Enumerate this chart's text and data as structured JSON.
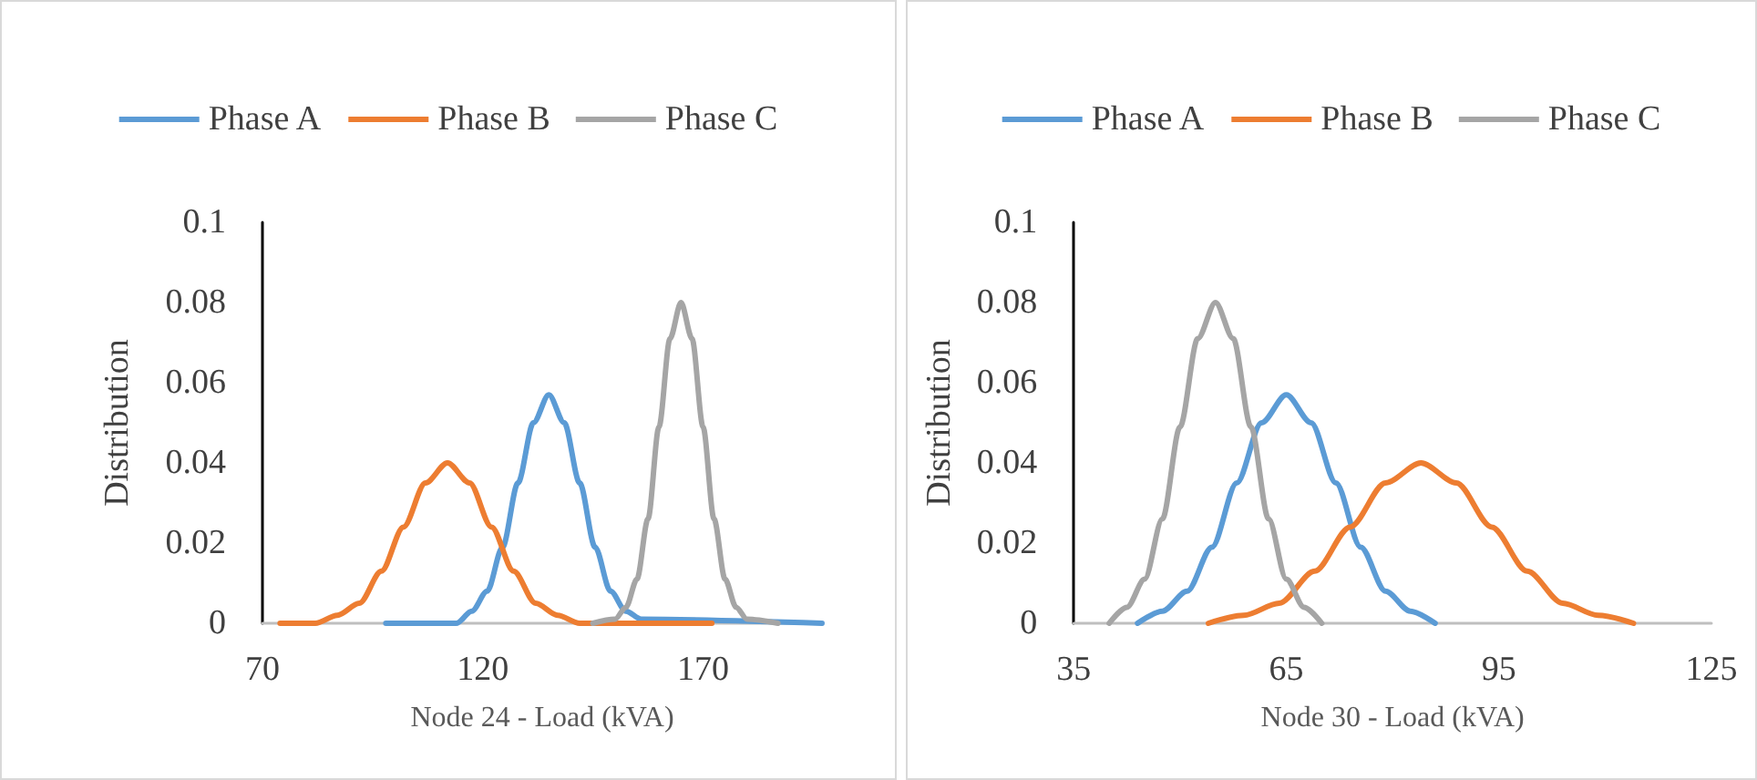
{
  "chart_data": [
    {
      "type": "line",
      "xlabel": "Node 24 - Load (kVA)",
      "ylabel": "Distribution",
      "xlim": [
        70,
        197
      ],
      "xticks": [
        70,
        120,
        170
      ],
      "ylim": [
        0,
        0.1
      ],
      "yticks": [
        0,
        0.02,
        0.04,
        0.06,
        0.08,
        0.1
      ],
      "grid": false,
      "legend": "top",
      "marker": "none",
      "line_style": "solid",
      "series": [
        {
          "name": "Phase A",
          "color": "#5b9bd5",
          "x": [
            98,
            114,
            117.5,
            121,
            124.5,
            128,
            131.5,
            135,
            138.5,
            142,
            145.5,
            149,
            152.5,
            156,
            197
          ],
          "values": [
            0,
            0,
            0.003,
            0.008,
            0.019,
            0.035,
            0.05,
            0.057,
            0.05,
            0.035,
            0.019,
            0.008,
            0.003,
            0.001,
            0
          ]
        },
        {
          "name": "Phase B",
          "color": "#ed7d31",
          "x": [
            74,
            82,
            87,
            92,
            97,
            102,
            107,
            112,
            117,
            122,
            127,
            132,
            137,
            142,
            172
          ],
          "values": [
            0,
            0,
            0.002,
            0.005,
            0.013,
            0.024,
            0.035,
            0.04,
            0.035,
            0.024,
            0.013,
            0.005,
            0.002,
            0,
            0
          ]
        },
        {
          "name": "Phase C",
          "color": "#a5a5a5",
          "x": [
            145,
            150,
            152.5,
            155,
            157.5,
            160,
            162.5,
            165,
            167.5,
            170,
            172.5,
            175,
            177.5,
            180,
            187
          ],
          "values": [
            0,
            0.001,
            0.004,
            0.011,
            0.026,
            0.049,
            0.071,
            0.08,
            0.071,
            0.049,
            0.026,
            0.011,
            0.004,
            0.001,
            0
          ]
        }
      ]
    },
    {
      "type": "line",
      "xlabel": "Node 30 - Load (kVA)",
      "ylabel": "Distribution",
      "xlim": [
        35,
        125
      ],
      "xticks": [
        35,
        65,
        95,
        125
      ],
      "ylim": [
        0,
        0.1
      ],
      "yticks": [
        0,
        0.02,
        0.04,
        0.06,
        0.08,
        0.1
      ],
      "grid": false,
      "legend": "top",
      "marker": "none",
      "line_style": "solid",
      "series": [
        {
          "name": "Phase A",
          "color": "#5b9bd5",
          "x": [
            44,
            47.5,
            51,
            54.5,
            58,
            61.5,
            65,
            68.5,
            72,
            75.5,
            79,
            82.5,
            86
          ],
          "values": [
            0,
            0.003,
            0.008,
            0.019,
            0.035,
            0.05,
            0.057,
            0.05,
            0.035,
            0.019,
            0.008,
            0.003,
            0
          ]
        },
        {
          "name": "Phase B",
          "color": "#ed7d31",
          "x": [
            54,
            59,
            64,
            69,
            74,
            79,
            84,
            89,
            94,
            99,
            104,
            109,
            114
          ],
          "values": [
            0,
            0.002,
            0.005,
            0.013,
            0.024,
            0.035,
            0.04,
            0.035,
            0.024,
            0.013,
            0.005,
            0.002,
            0
          ]
        },
        {
          "name": "Phase C",
          "color": "#a5a5a5",
          "x": [
            40,
            42.5,
            45,
            47.5,
            50,
            52.5,
            55,
            57.5,
            60,
            62.5,
            65,
            67.5,
            70
          ],
          "values": [
            0,
            0.004,
            0.011,
            0.026,
            0.049,
            0.071,
            0.08,
            0.071,
            0.049,
            0.026,
            0.011,
            0.004,
            0
          ]
        }
      ]
    }
  ]
}
